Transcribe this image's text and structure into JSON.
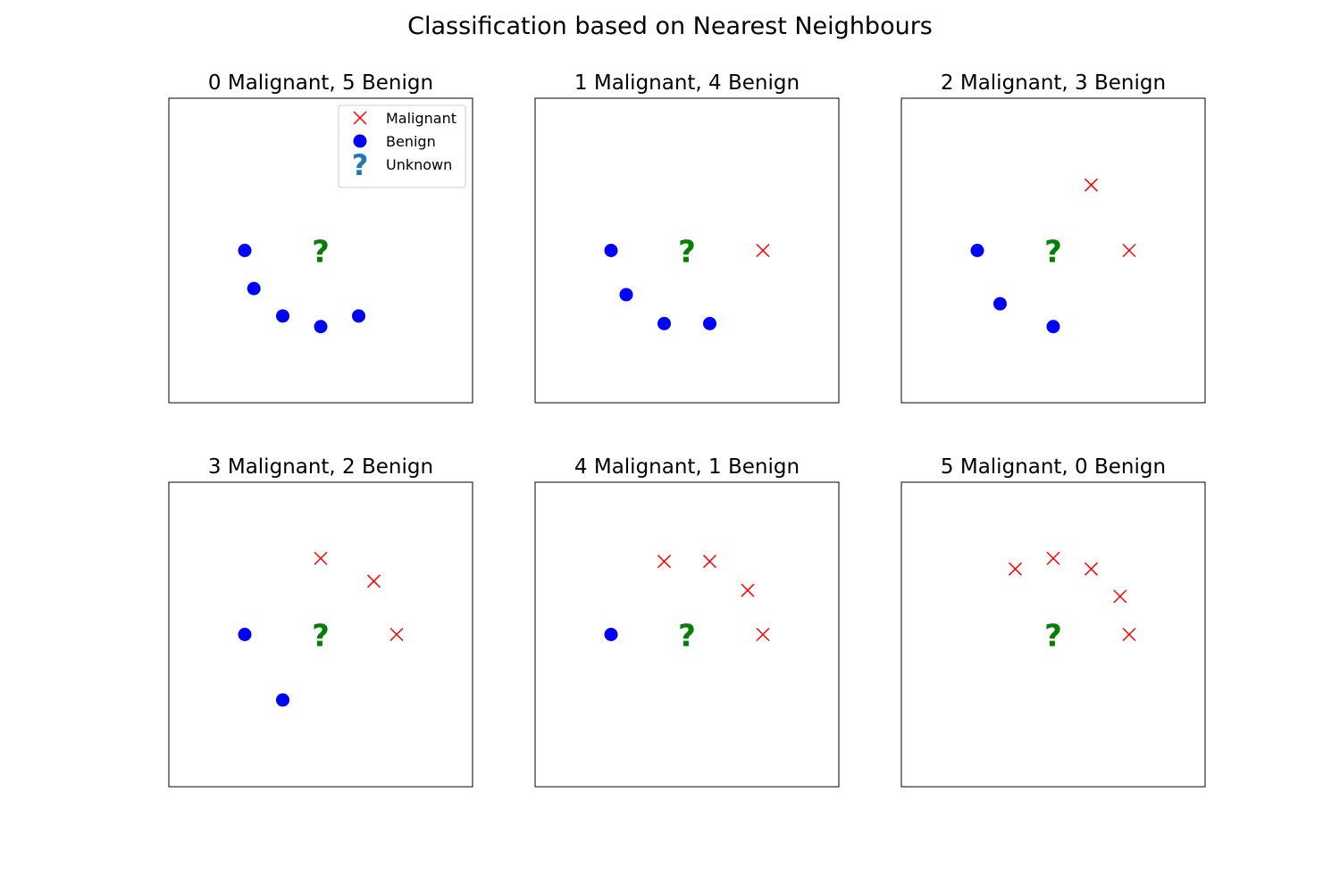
{
  "figure": {
    "suptitle": "Classification based on Nearest Neighbours"
  },
  "chart_data": [
    {
      "type": "scatter",
      "title": "0 Malignant, 5 Benign",
      "xlim": [
        -1,
        1
      ],
      "ylim": [
        -1,
        1
      ],
      "unknown": [
        0,
        0
      ],
      "malignant": [],
      "benign": [
        [
          -0.5,
          0
        ],
        [
          -0.44,
          -0.25
        ],
        [
          -0.25,
          -0.43
        ],
        [
          0,
          -0.5
        ],
        [
          0.25,
          -0.43
        ]
      ],
      "legend": {
        "placement": "upper right",
        "entries": [
          "Malignant",
          "Benign",
          "Unknown"
        ]
      }
    },
    {
      "type": "scatter",
      "title": "1 Malignant, 4 Benign",
      "xlim": [
        -1,
        1
      ],
      "ylim": [
        -1,
        1
      ],
      "unknown": [
        0,
        0
      ],
      "malignant": [
        [
          0.5,
          0
        ]
      ],
      "benign": [
        [
          -0.5,
          0
        ],
        [
          -0.4,
          -0.29
        ],
        [
          -0.15,
          -0.48
        ],
        [
          0.15,
          -0.48
        ]
      ]
    },
    {
      "type": "scatter",
      "title": "2 Malignant, 3 Benign",
      "xlim": [
        -1,
        1
      ],
      "ylim": [
        -1,
        1
      ],
      "unknown": [
        0,
        0
      ],
      "malignant": [
        [
          0.25,
          0.43
        ],
        [
          0.5,
          0
        ]
      ],
      "benign": [
        [
          -0.5,
          0
        ],
        [
          -0.35,
          -0.35
        ],
        [
          0,
          -0.5
        ]
      ]
    },
    {
      "type": "scatter",
      "title": "3 Malignant, 2 Benign",
      "xlim": [
        -1,
        1
      ],
      "ylim": [
        -1,
        1
      ],
      "unknown": [
        0,
        0
      ],
      "malignant": [
        [
          0,
          0.5
        ],
        [
          0.35,
          0.35
        ],
        [
          0.5,
          0
        ]
      ],
      "benign": [
        [
          -0.5,
          0
        ],
        [
          -0.25,
          -0.43
        ]
      ]
    },
    {
      "type": "scatter",
      "title": "4 Malignant, 1 Benign",
      "xlim": [
        -1,
        1
      ],
      "ylim": [
        -1,
        1
      ],
      "unknown": [
        0,
        0
      ],
      "malignant": [
        [
          -0.15,
          0.48
        ],
        [
          0.15,
          0.48
        ],
        [
          0.4,
          0.29
        ],
        [
          0.5,
          0
        ]
      ],
      "benign": [
        [
          -0.5,
          0
        ]
      ]
    },
    {
      "type": "scatter",
      "title": "5 Malignant, 0 Benign",
      "xlim": [
        -1,
        1
      ],
      "ylim": [
        -1,
        1
      ],
      "unknown": [
        0,
        0
      ],
      "malignant": [
        [
          -0.25,
          0.43
        ],
        [
          0,
          0.5
        ],
        [
          0.25,
          0.43
        ],
        [
          0.44,
          0.25
        ],
        [
          0.5,
          0
        ]
      ],
      "benign": []
    }
  ],
  "style": {
    "malignant_color": "#ff0000",
    "benign_color": "#0000ff",
    "unknown_color": "#008000",
    "legend_unknown_color": "#1f77b4",
    "unknown_symbol": "?"
  }
}
